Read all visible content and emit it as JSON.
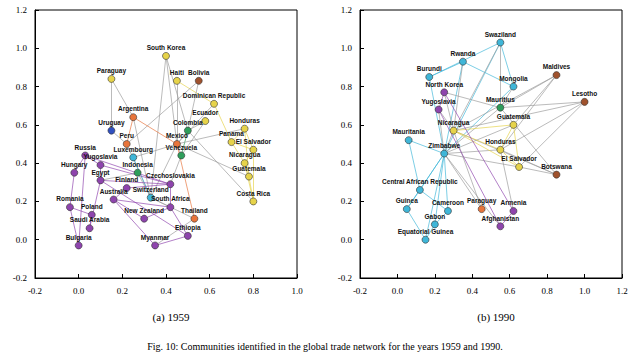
{
  "caption": "Fig. 10: Communities identified in the global trade network for the years 1959 and 1990.",
  "chart_data": [
    {
      "type": "network",
      "title": "(a) 1959",
      "xlim": [
        -0.2,
        1.0
      ],
      "ylim": [
        -0.2,
        1.2
      ],
      "xticks": [
        {
          "value": -0.2,
          "label": "-0.2"
        },
        {
          "value": 0.0,
          "label": "0.0"
        },
        {
          "value": 0.2,
          "label": "0.2"
        },
        {
          "value": 0.4,
          "label": "0.4"
        },
        {
          "value": 0.6,
          "label": "0.6"
        },
        {
          "value": 0.8,
          "label": "0.8"
        },
        {
          "value": 1.0,
          "label": "1.0"
        }
      ],
      "yticks": [
        {
          "value": -0.2,
          "label": "-0.2"
        },
        {
          "value": 0.0,
          "label": "0.0"
        },
        {
          "value": 0.2,
          "label": "0.2"
        },
        {
          "value": 0.4,
          "label": "0.4"
        },
        {
          "value": 0.6,
          "label": "0.6"
        },
        {
          "value": 0.8,
          "label": "0.8"
        },
        {
          "value": 1.0,
          "label": "1.0"
        },
        {
          "value": 1.2,
          "label": "1.2"
        }
      ],
      "grid": false,
      "nodes": [
        {
          "name": "South Korea",
          "x": 0.4,
          "y": 0.96,
          "color": "#e6d34a"
        },
        {
          "name": "Paraguay",
          "x": 0.15,
          "y": 0.84,
          "color": "#e6d34a"
        },
        {
          "name": "Haiti",
          "x": 0.45,
          "y": 0.83,
          "color": "#e6d34a"
        },
        {
          "name": "Bolivia",
          "x": 0.55,
          "y": 0.83,
          "color": "#a0522d"
        },
        {
          "name": "Dominican Republic",
          "x": 0.62,
          "y": 0.71,
          "color": "#e6d34a"
        },
        {
          "name": "Ecuador",
          "x": 0.58,
          "y": 0.62,
          "color": "#e6d34a"
        },
        {
          "name": "Argentina",
          "x": 0.25,
          "y": 0.64,
          "color": "#e8743b"
        },
        {
          "name": "Colombia",
          "x": 0.5,
          "y": 0.57,
          "color": "#2e9e5b"
        },
        {
          "name": "Honduras",
          "x": 0.76,
          "y": 0.58,
          "color": "#e6d34a"
        },
        {
          "name": "Panama",
          "x": 0.7,
          "y": 0.51,
          "color": "#e6d34a"
        },
        {
          "name": "El Salvador",
          "x": 0.8,
          "y": 0.47,
          "color": "#e6d34a"
        },
        {
          "name": "Uruguay",
          "x": 0.15,
          "y": 0.57,
          "color": "#3050c0"
        },
        {
          "name": "Mexico",
          "x": 0.45,
          "y": 0.5,
          "color": "#e8743b"
        },
        {
          "name": "Venezuela",
          "x": 0.47,
          "y": 0.44,
          "color": "#2e9e5b"
        },
        {
          "name": "Nicaragua",
          "x": 0.76,
          "y": 0.4,
          "color": "#e6d34a"
        },
        {
          "name": "Guatemala",
          "x": 0.78,
          "y": 0.33,
          "color": "#e6d34a"
        },
        {
          "name": "Costa Rica",
          "x": 0.8,
          "y": 0.2,
          "color": "#e6d34a"
        },
        {
          "name": "Peru",
          "x": 0.22,
          "y": 0.5,
          "color": "#e8743b"
        },
        {
          "name": "Luxembourg",
          "x": 0.25,
          "y": 0.43,
          "color": "#3fb6d8"
        },
        {
          "name": "Russia",
          "x": 0.03,
          "y": 0.44,
          "color": "#8e44ad"
        },
        {
          "name": "Yugoslavia",
          "x": 0.1,
          "y": 0.39,
          "color": "#8e44ad"
        },
        {
          "name": "Hungary",
          "x": -0.02,
          "y": 0.35,
          "color": "#8e44ad"
        },
        {
          "name": "Egypt",
          "x": 0.1,
          "y": 0.31,
          "color": "#8e44ad"
        },
        {
          "name": "Indonesia",
          "x": 0.27,
          "y": 0.35,
          "color": "#2e9e5b"
        },
        {
          "name": "Czechoslovakia",
          "x": 0.42,
          "y": 0.29,
          "color": "#8e44ad"
        },
        {
          "name": "Finland",
          "x": 0.22,
          "y": 0.27,
          "color": "#8e44ad"
        },
        {
          "name": "Switzerland",
          "x": 0.33,
          "y": 0.22,
          "color": "#3fb6d8"
        },
        {
          "name": "Australia",
          "x": 0.16,
          "y": 0.21,
          "color": "#8e44ad"
        },
        {
          "name": "South Africa",
          "x": 0.42,
          "y": 0.17,
          "color": "#8e44ad"
        },
        {
          "name": "Romania",
          "x": -0.04,
          "y": 0.17,
          "color": "#8e44ad"
        },
        {
          "name": "Poland",
          "x": 0.06,
          "y": 0.13,
          "color": "#8e44ad"
        },
        {
          "name": "Saudi Arabia",
          "x": 0.05,
          "y": 0.06,
          "color": "#8e44ad"
        },
        {
          "name": "New Zealand",
          "x": 0.3,
          "y": 0.11,
          "color": "#8e44ad"
        },
        {
          "name": "Thailand",
          "x": 0.53,
          "y": 0.11,
          "color": "#e8743b"
        },
        {
          "name": "Ethiopia",
          "x": 0.5,
          "y": 0.02,
          "color": "#8e44ad"
        },
        {
          "name": "Myanmar",
          "x": 0.35,
          "y": -0.03,
          "color": "#8e44ad"
        },
        {
          "name": "Bulgaria",
          "x": 0.0,
          "y": -0.03,
          "color": "#8e44ad"
        }
      ],
      "links": [
        [
          8,
          9
        ],
        [
          8,
          10
        ],
        [
          9,
          10
        ],
        [
          10,
          14
        ],
        [
          14,
          15
        ],
        [
          15,
          16
        ],
        [
          9,
          14
        ],
        [
          8,
          15
        ],
        [
          10,
          16
        ],
        [
          14,
          16
        ],
        [
          4,
          9
        ],
        [
          2,
          4
        ],
        [
          0,
          12
        ],
        [
          0,
          7
        ],
        [
          0,
          26
        ],
        [
          1,
          6
        ],
        [
          1,
          11
        ],
        [
          2,
          12
        ],
        [
          3,
          7
        ],
        [
          3,
          17
        ],
        [
          4,
          12
        ],
        [
          5,
          7
        ],
        [
          5,
          13
        ],
        [
          6,
          12
        ],
        [
          6,
          17
        ],
        [
          6,
          26
        ],
        [
          7,
          12
        ],
        [
          7,
          13
        ],
        [
          11,
          17
        ],
        [
          12,
          13
        ],
        [
          12,
          26
        ],
        [
          13,
          24
        ],
        [
          8,
          12
        ],
        [
          15,
          12
        ],
        [
          16,
          7
        ],
        [
          17,
          26
        ],
        [
          18,
          26
        ],
        [
          18,
          12
        ],
        [
          23,
          26
        ],
        [
          33,
          26
        ],
        [
          33,
          12
        ],
        [
          28,
          26
        ],
        [
          23,
          22
        ],
        [
          33,
          35
        ],
        [
          19,
          20
        ],
        [
          19,
          21
        ],
        [
          20,
          22
        ],
        [
          21,
          29
        ],
        [
          22,
          24
        ],
        [
          24,
          25
        ],
        [
          25,
          27
        ],
        [
          27,
          32
        ],
        [
          29,
          30
        ],
        [
          30,
          31
        ],
        [
          31,
          22
        ],
        [
          32,
          28
        ],
        [
          34,
          22
        ],
        [
          35,
          27
        ],
        [
          36,
          29
        ],
        [
          36,
          19
        ],
        [
          24,
          19
        ],
        [
          28,
          24
        ],
        [
          34,
          28
        ],
        [
          35,
          34
        ],
        [
          20,
          24
        ],
        [
          27,
          28
        ]
      ]
    },
    {
      "type": "network",
      "title": "(b) 1990",
      "xlim": [
        -0.2,
        1.2
      ],
      "ylim": [
        -0.2,
        1.2
      ],
      "xticks": [
        {
          "value": -0.2,
          "label": "-0.2"
        },
        {
          "value": 0.0,
          "label": "0.0"
        },
        {
          "value": 0.2,
          "label": "0.2"
        },
        {
          "value": 0.4,
          "label": "0.4"
        },
        {
          "value": 0.6,
          "label": "0.6"
        },
        {
          "value": 0.8,
          "label": "0.8"
        },
        {
          "value": 1.0,
          "label": "1.0"
        },
        {
          "value": 1.2,
          "label": "1.2"
        }
      ],
      "yticks": [
        {
          "value": -0.2,
          "label": "-0.2"
        },
        {
          "value": 0.0,
          "label": "0.0"
        },
        {
          "value": 0.2,
          "label": "0.2"
        },
        {
          "value": 0.4,
          "label": "0.4"
        },
        {
          "value": 0.6,
          "label": "0.6"
        },
        {
          "value": 0.8,
          "label": "0.8"
        },
        {
          "value": 1.0,
          "label": "1.0"
        },
        {
          "value": 1.2,
          "label": "1.2"
        }
      ],
      "grid": false,
      "nodes": [
        {
          "name": "Swaziland",
          "x": 0.55,
          "y": 1.03,
          "color": "#3fb6d8"
        },
        {
          "name": "Rwanda",
          "x": 0.35,
          "y": 0.93,
          "color": "#3fb6d8"
        },
        {
          "name": "Maldives",
          "x": 0.85,
          "y": 0.86,
          "color": "#a0522d"
        },
        {
          "name": "Burundi",
          "x": 0.17,
          "y": 0.85,
          "color": "#3fb6d8"
        },
        {
          "name": "Mongolia",
          "x": 0.62,
          "y": 0.8,
          "color": "#3fb6d8"
        },
        {
          "name": "Lesotho",
          "x": 1.0,
          "y": 0.72,
          "color": "#a0522d"
        },
        {
          "name": "North Korea",
          "x": 0.25,
          "y": 0.77,
          "color": "#8e44ad"
        },
        {
          "name": "Mauritius",
          "x": 0.55,
          "y": 0.69,
          "color": "#2e9e5b"
        },
        {
          "name": "Yugoslavia",
          "x": 0.22,
          "y": 0.68,
          "color": "#8e44ad"
        },
        {
          "name": "Nicaragua",
          "x": 0.3,
          "y": 0.57,
          "color": "#e6d34a"
        },
        {
          "name": "Guatemala",
          "x": 0.62,
          "y": 0.6,
          "color": "#e6d34a"
        },
        {
          "name": "Zimbabwe",
          "x": 0.25,
          "y": 0.45,
          "color": "#3fb6d8"
        },
        {
          "name": "Honduras",
          "x": 0.55,
          "y": 0.47,
          "color": "#e6d34a"
        },
        {
          "name": "El Salvador",
          "x": 0.65,
          "y": 0.38,
          "color": "#e6d34a"
        },
        {
          "name": "Botswana",
          "x": 0.85,
          "y": 0.34,
          "color": "#a0522d"
        },
        {
          "name": "Central African Republic",
          "x": 0.12,
          "y": 0.26,
          "color": "#3fb6d8"
        },
        {
          "name": "Cameroon",
          "x": 0.27,
          "y": 0.15,
          "color": "#3fb6d8"
        },
        {
          "name": "Paraguay",
          "x": 0.45,
          "y": 0.16,
          "color": "#e8743b"
        },
        {
          "name": "Armenia",
          "x": 0.62,
          "y": 0.15,
          "color": "#8e44ad"
        },
        {
          "name": "Guinea",
          "x": 0.05,
          "y": 0.16,
          "color": "#3fb6d8"
        },
        {
          "name": "Afghanistan",
          "x": 0.55,
          "y": 0.07,
          "color": "#8e44ad"
        },
        {
          "name": "Equatorial Guinea",
          "x": 0.15,
          "y": 0.0,
          "color": "#3fb6d8"
        },
        {
          "name": "Gabon",
          "x": 0.2,
          "y": 0.08,
          "color": "#3fb6d8"
        },
        {
          "name": "Mauritania",
          "x": 0.06,
          "y": 0.52,
          "color": "#3fb6d8"
        }
      ],
      "links": [
        [
          0,
          11
        ],
        [
          0,
          4
        ],
        [
          1,
          11
        ],
        [
          1,
          3
        ],
        [
          3,
          11
        ],
        [
          4,
          11
        ],
        [
          15,
          11
        ],
        [
          16,
          11
        ],
        [
          19,
          11
        ],
        [
          19,
          15
        ],
        [
          21,
          11
        ],
        [
          21,
          22
        ],
        [
          22,
          16
        ],
        [
          23,
          11
        ],
        [
          23,
          15
        ],
        [
          0,
          3
        ],
        [
          1,
          4
        ],
        [
          21,
          19
        ],
        [
          22,
          11
        ],
        [
          16,
          15
        ],
        [
          2,
          7
        ],
        [
          2,
          12
        ],
        [
          2,
          9
        ],
        [
          2,
          10
        ],
        [
          5,
          7
        ],
        [
          5,
          12
        ],
        [
          5,
          13
        ],
        [
          5,
          9
        ],
        [
          14,
          12
        ],
        [
          14,
          9
        ],
        [
          14,
          7
        ],
        [
          14,
          13
        ],
        [
          0,
          7
        ],
        [
          0,
          9
        ],
        [
          1,
          9
        ],
        [
          6,
          9
        ],
        [
          8,
          9
        ],
        [
          6,
          7
        ],
        [
          8,
          11
        ],
        [
          10,
          11
        ],
        [
          12,
          11
        ],
        [
          17,
          11
        ],
        [
          18,
          12
        ],
        [
          20,
          11
        ],
        [
          17,
          9
        ],
        [
          4,
          7
        ],
        [
          13,
          11
        ],
        [
          7,
          11
        ],
        [
          9,
          11
        ],
        [
          9,
          10
        ],
        [
          9,
          12
        ],
        [
          10,
          12
        ],
        [
          12,
          13
        ],
        [
          10,
          13
        ],
        [
          9,
          13
        ],
        [
          6,
          8
        ],
        [
          18,
          20
        ],
        [
          8,
          20
        ],
        [
          6,
          18
        ]
      ]
    }
  ]
}
